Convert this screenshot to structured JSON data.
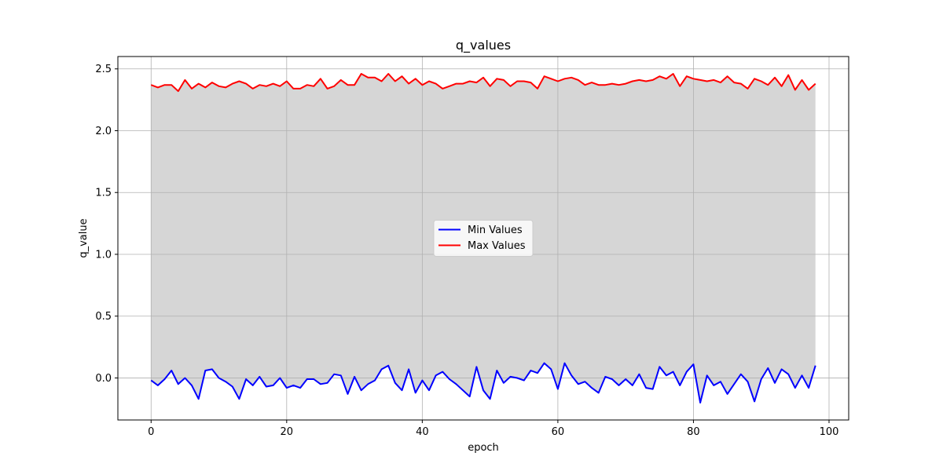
{
  "chart_data": {
    "type": "line",
    "title": "q_values",
    "xlabel": "epoch",
    "ylabel": "q_value",
    "xlim": [
      -4.9,
      102.9
    ],
    "ylim": [
      -0.34,
      2.6
    ],
    "xticks": [
      0,
      20,
      40,
      60,
      80,
      100
    ],
    "yticks": [
      0.0,
      0.5,
      1.0,
      1.5,
      2.0,
      2.5
    ],
    "xtick_labels": [
      "0",
      "20",
      "40",
      "60",
      "80",
      "100"
    ],
    "ytick_labels": [
      "0.0",
      "0.5",
      "1.0",
      "1.5",
      "2.0",
      "2.5"
    ],
    "grid": true,
    "legend_position": "center",
    "fill_between": {
      "color": "#d6d6d6"
    },
    "x": [
      0,
      1,
      2,
      3,
      4,
      5,
      6,
      7,
      8,
      9,
      10,
      11,
      12,
      13,
      14,
      15,
      16,
      17,
      18,
      19,
      20,
      21,
      22,
      23,
      24,
      25,
      26,
      27,
      28,
      29,
      30,
      31,
      32,
      33,
      34,
      35,
      36,
      37,
      38,
      39,
      40,
      41,
      42,
      43,
      44,
      45,
      46,
      47,
      48,
      49,
      50,
      51,
      52,
      53,
      54,
      55,
      56,
      57,
      58,
      59,
      60,
      61,
      62,
      63,
      64,
      65,
      66,
      67,
      68,
      69,
      70,
      71,
      72,
      73,
      74,
      75,
      76,
      77,
      78,
      79,
      80,
      81,
      82,
      83,
      84,
      85,
      86,
      87,
      88,
      89,
      90,
      91,
      92,
      93,
      94,
      95,
      96,
      97,
      98
    ],
    "series": [
      {
        "name": "Min Values",
        "color": "#0000ff",
        "values": [
          -0.02,
          -0.06,
          -0.01,
          0.06,
          -0.05,
          0.0,
          -0.06,
          -0.17,
          0.06,
          0.07,
          0.0,
          -0.03,
          -0.07,
          -0.17,
          -0.01,
          -0.06,
          0.01,
          -0.07,
          -0.06,
          0.0,
          -0.08,
          -0.06,
          -0.08,
          -0.01,
          -0.01,
          -0.05,
          -0.04,
          0.03,
          0.02,
          -0.13,
          0.01,
          -0.1,
          -0.05,
          -0.02,
          0.07,
          0.1,
          -0.04,
          -0.1,
          0.07,
          -0.12,
          -0.02,
          -0.1,
          0.02,
          0.05,
          -0.01,
          -0.05,
          -0.1,
          -0.15,
          0.09,
          -0.1,
          -0.17,
          0.06,
          -0.04,
          0.01,
          0.0,
          -0.02,
          0.06,
          0.04,
          0.12,
          0.07,
          -0.09,
          0.12,
          0.02,
          -0.05,
          -0.03,
          -0.08,
          -0.12,
          0.01,
          -0.01,
          -0.06,
          -0.01,
          -0.06,
          0.03,
          -0.08,
          -0.09,
          0.09,
          0.02,
          0.05,
          -0.06,
          0.05,
          0.11,
          -0.2,
          0.02,
          -0.06,
          -0.03,
          -0.13,
          -0.05,
          0.03,
          -0.03,
          -0.19,
          -0.01,
          0.08,
          -0.04,
          0.07,
          0.03,
          -0.08,
          0.02,
          -0.08,
          0.1
        ]
      },
      {
        "name": "Max Values",
        "color": "#ff0000",
        "values": [
          2.37,
          2.35,
          2.37,
          2.37,
          2.32,
          2.41,
          2.34,
          2.38,
          2.35,
          2.39,
          2.36,
          2.35,
          2.38,
          2.4,
          2.38,
          2.34,
          2.37,
          2.36,
          2.38,
          2.36,
          2.4,
          2.34,
          2.34,
          2.37,
          2.36,
          2.42,
          2.34,
          2.36,
          2.41,
          2.37,
          2.37,
          2.46,
          2.43,
          2.43,
          2.4,
          2.46,
          2.4,
          2.44,
          2.38,
          2.42,
          2.37,
          2.4,
          2.38,
          2.34,
          2.36,
          2.38,
          2.38,
          2.4,
          2.39,
          2.43,
          2.36,
          2.42,
          2.41,
          2.36,
          2.4,
          2.4,
          2.39,
          2.34,
          2.44,
          2.42,
          2.4,
          2.42,
          2.43,
          2.41,
          2.37,
          2.39,
          2.37,
          2.37,
          2.38,
          2.37,
          2.38,
          2.4,
          2.41,
          2.4,
          2.41,
          2.44,
          2.42,
          2.46,
          2.36,
          2.44,
          2.42,
          2.41,
          2.4,
          2.41,
          2.39,
          2.44,
          2.39,
          2.38,
          2.34,
          2.42,
          2.4,
          2.37,
          2.43,
          2.36,
          2.45,
          2.33,
          2.41,
          2.33,
          2.38
        ]
      }
    ]
  }
}
